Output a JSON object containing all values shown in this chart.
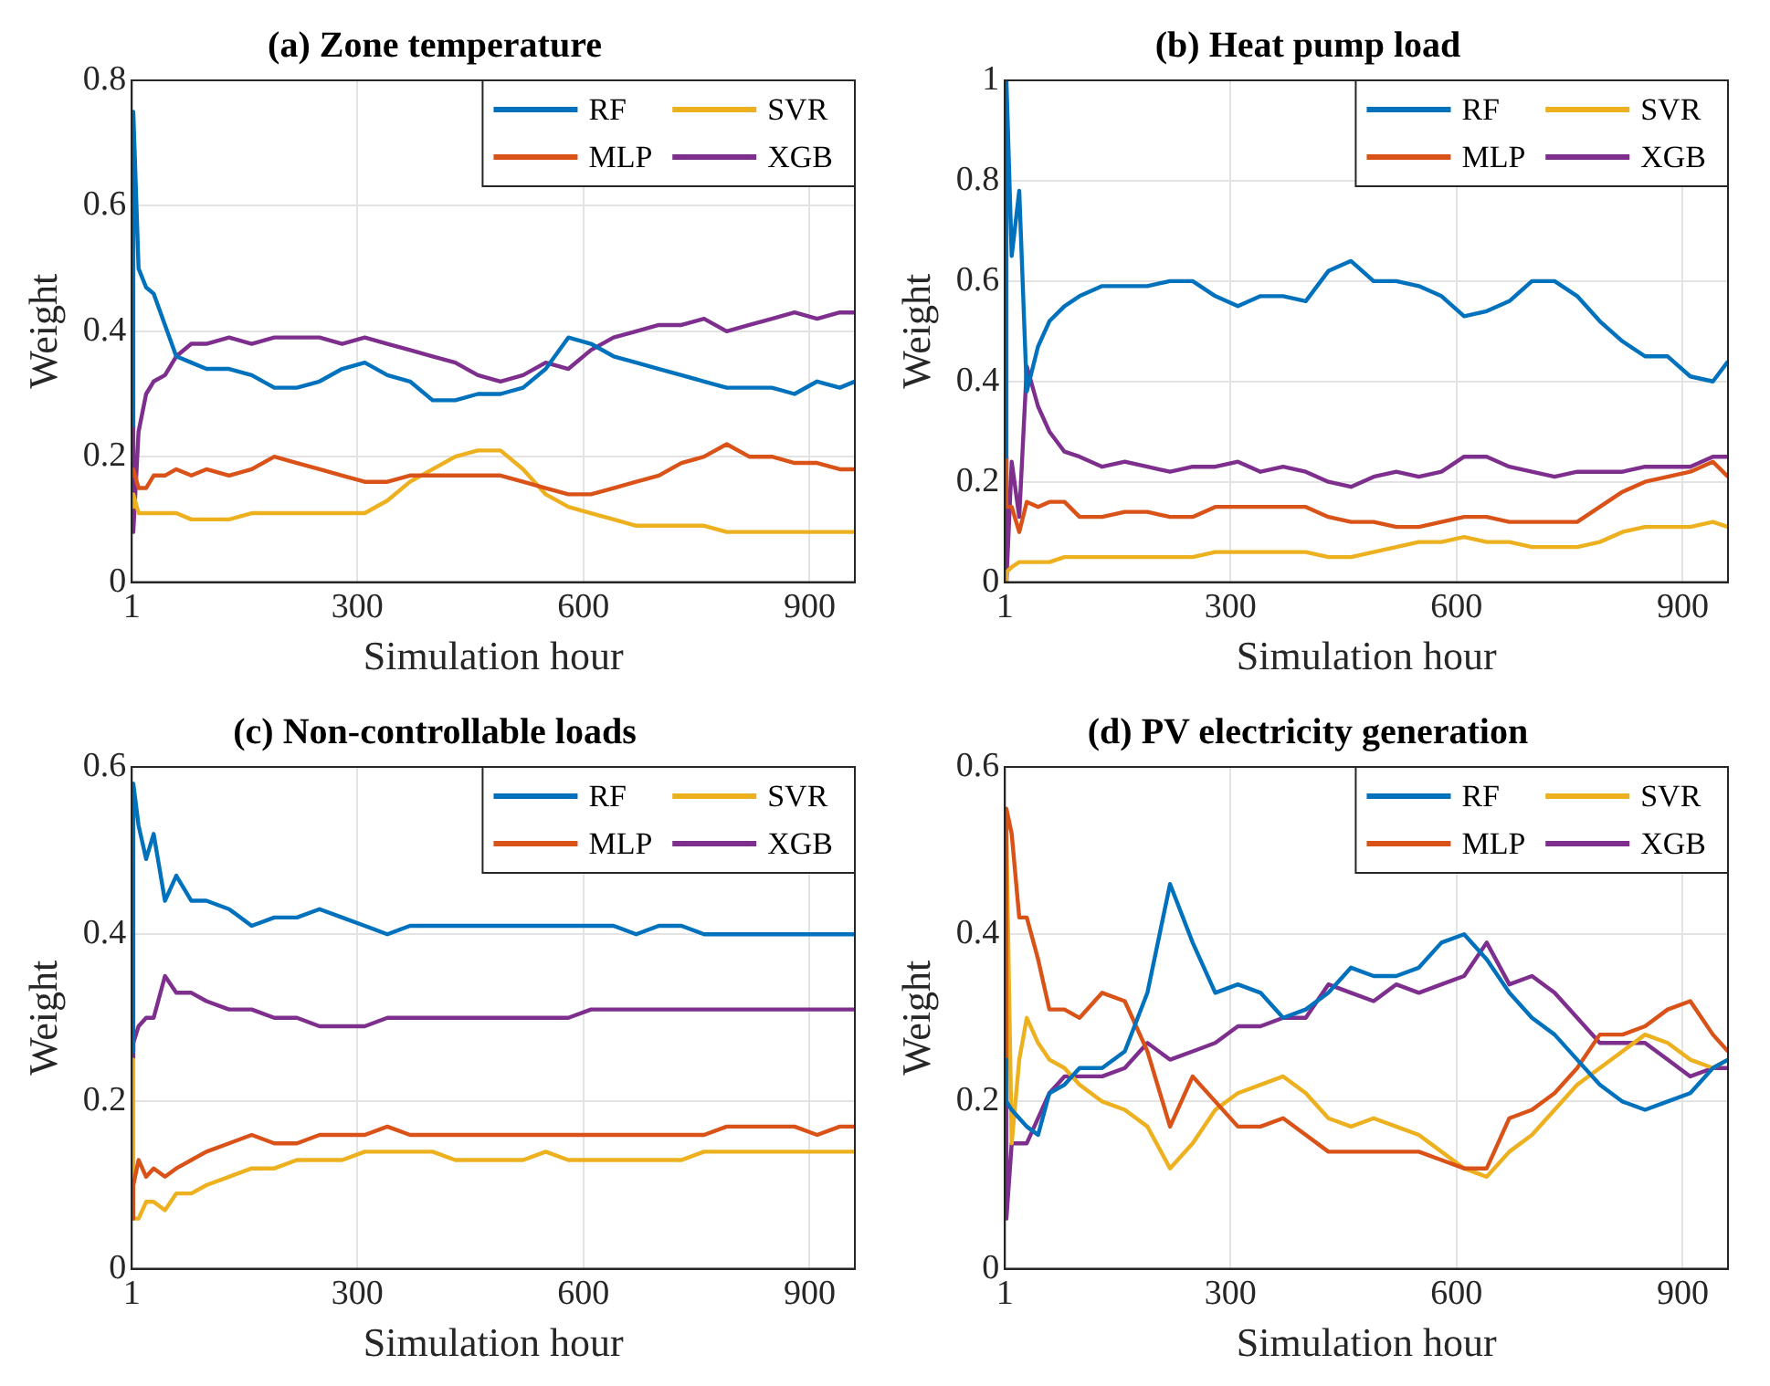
{
  "chart_data": [
    {
      "type": "line",
      "title": "(a) Zone temperature",
      "xlabel": "Simulation hour",
      "ylabel": "Weight",
      "xlim": [
        1,
        960
      ],
      "xticks": [
        1,
        300,
        600,
        900
      ],
      "ylim": [
        0,
        0.8
      ],
      "yticks": [
        0,
        0.2,
        0.4,
        0.6,
        0.8
      ],
      "grid": true,
      "legend": "top right",
      "line_style": "solid",
      "marker": "none",
      "x": [
        1,
        3,
        10,
        20,
        30,
        45,
        60,
        80,
        100,
        130,
        160,
        190,
        220,
        250,
        280,
        310,
        340,
        370,
        400,
        430,
        460,
        490,
        520,
        550,
        580,
        610,
        640,
        670,
        700,
        730,
        760,
        790,
        820,
        850,
        880,
        910,
        940,
        960
      ],
      "series": [
        {
          "name": "RF",
          "color": "#0072bd",
          "values": [
            0.25,
            0.75,
            0.5,
            0.47,
            0.46,
            0.41,
            0.36,
            0.35,
            0.34,
            0.34,
            0.33,
            0.31,
            0.31,
            0.32,
            0.34,
            0.35,
            0.33,
            0.32,
            0.29,
            0.29,
            0.3,
            0.3,
            0.31,
            0.34,
            0.39,
            0.38,
            0.36,
            0.35,
            0.34,
            0.33,
            0.32,
            0.31,
            0.31,
            0.31,
            0.3,
            0.32,
            0.31,
            0.32
          ]
        },
        {
          "name": "MLP",
          "color": "#d95319",
          "values": [
            0.17,
            0.18,
            0.15,
            0.15,
            0.17,
            0.17,
            0.18,
            0.17,
            0.18,
            0.17,
            0.18,
            0.2,
            0.19,
            0.18,
            0.17,
            0.16,
            0.16,
            0.17,
            0.17,
            0.17,
            0.17,
            0.17,
            0.16,
            0.15,
            0.14,
            0.14,
            0.15,
            0.16,
            0.17,
            0.19,
            0.2,
            0.22,
            0.2,
            0.2,
            0.19,
            0.19,
            0.18,
            0.18
          ]
        },
        {
          "name": "SVR",
          "color": "#edb120",
          "values": [
            0.12,
            0.14,
            0.11,
            0.11,
            0.11,
            0.11,
            0.11,
            0.1,
            0.1,
            0.1,
            0.11,
            0.11,
            0.11,
            0.11,
            0.11,
            0.11,
            0.13,
            0.16,
            0.18,
            0.2,
            0.21,
            0.21,
            0.18,
            0.14,
            0.12,
            0.11,
            0.1,
            0.09,
            0.09,
            0.09,
            0.09,
            0.08,
            0.08,
            0.08,
            0.08,
            0.08,
            0.08,
            0.08
          ]
        },
        {
          "name": "XGB",
          "color": "#7e2f8e",
          "values": [
            0.25,
            0.08,
            0.24,
            0.3,
            0.32,
            0.33,
            0.36,
            0.38,
            0.38,
            0.39,
            0.38,
            0.39,
            0.39,
            0.39,
            0.38,
            0.39,
            0.38,
            0.37,
            0.36,
            0.35,
            0.33,
            0.32,
            0.33,
            0.35,
            0.34,
            0.37,
            0.39,
            0.4,
            0.41,
            0.41,
            0.42,
            0.4,
            0.41,
            0.42,
            0.43,
            0.42,
            0.43,
            0.43
          ]
        }
      ]
    },
    {
      "type": "line",
      "title": "(b) Heat pump load",
      "xlabel": "Simulation hour",
      "ylabel": "Weight",
      "xlim": [
        1,
        960
      ],
      "xticks": [
        1,
        300,
        600,
        900
      ],
      "ylim": [
        0,
        1
      ],
      "yticks": [
        0,
        0.2,
        0.4,
        0.6,
        0.8,
        1
      ],
      "grid": true,
      "legend": "top right",
      "line_style": "solid",
      "marker": "none",
      "x": [
        1,
        3,
        10,
        20,
        30,
        45,
        60,
        80,
        100,
        130,
        160,
        190,
        220,
        250,
        280,
        310,
        340,
        370,
        400,
        430,
        460,
        490,
        520,
        550,
        580,
        610,
        640,
        670,
        700,
        730,
        760,
        790,
        820,
        850,
        880,
        910,
        940,
        960
      ],
      "series": [
        {
          "name": "RF",
          "color": "#0072bd",
          "values": [
            0.25,
            1,
            0.65,
            0.78,
            0.38,
            0.47,
            0.52,
            0.55,
            0.57,
            0.59,
            0.59,
            0.59,
            0.6,
            0.6,
            0.57,
            0.55,
            0.57,
            0.57,
            0.56,
            0.62,
            0.64,
            0.6,
            0.6,
            0.59,
            0.57,
            0.53,
            0.54,
            0.56,
            0.6,
            0.6,
            0.57,
            0.52,
            0.48,
            0.45,
            0.45,
            0.41,
            0.4,
            0.44
          ]
        },
        {
          "name": "MLP",
          "color": "#d95319",
          "values": [
            0.25,
            0.15,
            0.15,
            0.1,
            0.16,
            0.15,
            0.16,
            0.16,
            0.13,
            0.13,
            0.14,
            0.14,
            0.13,
            0.13,
            0.15,
            0.15,
            0.15,
            0.15,
            0.15,
            0.13,
            0.12,
            0.12,
            0.11,
            0.11,
            0.12,
            0.13,
            0.13,
            0.12,
            0.12,
            0.12,
            0.12,
            0.15,
            0.18,
            0.2,
            0.21,
            0.22,
            0.24,
            0.21
          ]
        },
        {
          "name": "SVR",
          "color": "#edb120",
          "values": [
            0,
            0.02,
            0.03,
            0.04,
            0.04,
            0.04,
            0.04,
            0.05,
            0.05,
            0.05,
            0.05,
            0.05,
            0.05,
            0.05,
            0.06,
            0.06,
            0.06,
            0.06,
            0.06,
            0.05,
            0.05,
            0.06,
            0.07,
            0.08,
            0.08,
            0.09,
            0.08,
            0.08,
            0.07,
            0.07,
            0.07,
            0.08,
            0.1,
            0.11,
            0.11,
            0.11,
            0.12,
            0.11
          ]
        },
        {
          "name": "XGB",
          "color": "#7e2f8e",
          "values": [
            0.25,
            0,
            0.24,
            0.13,
            0.43,
            0.35,
            0.3,
            0.26,
            0.25,
            0.23,
            0.24,
            0.23,
            0.22,
            0.23,
            0.23,
            0.24,
            0.22,
            0.23,
            0.22,
            0.2,
            0.19,
            0.21,
            0.22,
            0.21,
            0.22,
            0.25,
            0.25,
            0.23,
            0.22,
            0.21,
            0.22,
            0.22,
            0.22,
            0.23,
            0.23,
            0.23,
            0.25,
            0.25
          ]
        }
      ]
    },
    {
      "type": "line",
      "title": "(c) Non-controllable loads",
      "xlabel": "Simulation hour",
      "ylabel": "Weight",
      "xlim": [
        1,
        960
      ],
      "xticks": [
        1,
        300,
        600,
        900
      ],
      "ylim": [
        0,
        0.6
      ],
      "yticks": [
        0,
        0.2,
        0.4,
        0.6
      ],
      "grid": true,
      "legend": "top right",
      "line_style": "solid",
      "marker": "none",
      "x": [
        1,
        3,
        10,
        20,
        30,
        45,
        60,
        80,
        100,
        130,
        160,
        190,
        220,
        250,
        280,
        310,
        340,
        370,
        400,
        430,
        460,
        490,
        520,
        550,
        580,
        610,
        640,
        670,
        700,
        730,
        760,
        790,
        820,
        850,
        880,
        910,
        940,
        960
      ],
      "series": [
        {
          "name": "RF",
          "color": "#0072bd",
          "values": [
            0.26,
            0.58,
            0.53,
            0.49,
            0.52,
            0.44,
            0.47,
            0.44,
            0.44,
            0.43,
            0.41,
            0.42,
            0.42,
            0.43,
            0.42,
            0.41,
            0.4,
            0.41,
            0.41,
            0.41,
            0.41,
            0.41,
            0.41,
            0.41,
            0.41,
            0.41,
            0.41,
            0.4,
            0.41,
            0.41,
            0.4,
            0.4,
            0.4,
            0.4,
            0.4,
            0.4,
            0.4,
            0.4
          ]
        },
        {
          "name": "MLP",
          "color": "#d95319",
          "values": [
            0.06,
            0.1,
            0.13,
            0.11,
            0.12,
            0.11,
            0.12,
            0.13,
            0.14,
            0.15,
            0.16,
            0.15,
            0.15,
            0.16,
            0.16,
            0.16,
            0.17,
            0.16,
            0.16,
            0.16,
            0.16,
            0.16,
            0.16,
            0.16,
            0.16,
            0.16,
            0.16,
            0.16,
            0.16,
            0.16,
            0.16,
            0.17,
            0.17,
            0.17,
            0.17,
            0.16,
            0.17,
            0.17
          ]
        },
        {
          "name": "SVR",
          "color": "#edb120",
          "values": [
            0.25,
            0.06,
            0.06,
            0.08,
            0.08,
            0.07,
            0.09,
            0.09,
            0.1,
            0.11,
            0.12,
            0.12,
            0.13,
            0.13,
            0.13,
            0.14,
            0.14,
            0.14,
            0.14,
            0.13,
            0.13,
            0.13,
            0.13,
            0.14,
            0.13,
            0.13,
            0.13,
            0.13,
            0.13,
            0.13,
            0.14,
            0.14,
            0.14,
            0.14,
            0.14,
            0.14,
            0.14,
            0.14
          ]
        },
        {
          "name": "XGB",
          "color": "#7e2f8e",
          "values": [
            0.25,
            0.27,
            0.29,
            0.3,
            0.3,
            0.35,
            0.33,
            0.33,
            0.32,
            0.31,
            0.31,
            0.3,
            0.3,
            0.29,
            0.29,
            0.29,
            0.3,
            0.3,
            0.3,
            0.3,
            0.3,
            0.3,
            0.3,
            0.3,
            0.3,
            0.31,
            0.31,
            0.31,
            0.31,
            0.31,
            0.31,
            0.31,
            0.31,
            0.31,
            0.31,
            0.31,
            0.31,
            0.31
          ]
        }
      ]
    },
    {
      "type": "line",
      "title": "(d) PV electricity generation",
      "xlabel": "Simulation hour",
      "ylabel": "Weight",
      "xlim": [
        1,
        960
      ],
      "xticks": [
        1,
        300,
        600,
        900
      ],
      "ylim": [
        0,
        0.6
      ],
      "yticks": [
        0,
        0.2,
        0.4,
        0.6
      ],
      "grid": true,
      "legend": "top right",
      "line_style": "solid",
      "marker": "none",
      "x": [
        1,
        3,
        10,
        20,
        30,
        45,
        60,
        80,
        100,
        130,
        160,
        190,
        220,
        250,
        280,
        310,
        340,
        370,
        400,
        430,
        460,
        490,
        520,
        550,
        580,
        610,
        640,
        670,
        700,
        730,
        760,
        790,
        820,
        850,
        880,
        910,
        940,
        960
      ],
      "series": [
        {
          "name": "RF",
          "color": "#0072bd",
          "values": [
            0.25,
            0.2,
            0.19,
            0.18,
            0.17,
            0.16,
            0.21,
            0.22,
            0.24,
            0.24,
            0.26,
            0.33,
            0.46,
            0.39,
            0.33,
            0.34,
            0.33,
            0.3,
            0.31,
            0.33,
            0.36,
            0.35,
            0.35,
            0.36,
            0.39,
            0.4,
            0.37,
            0.33,
            0.3,
            0.28,
            0.25,
            0.22,
            0.2,
            0.19,
            0.2,
            0.21,
            0.24,
            0.25
          ]
        },
        {
          "name": "MLP",
          "color": "#d95319",
          "values": [
            0.25,
            0.55,
            0.52,
            0.42,
            0.42,
            0.37,
            0.31,
            0.31,
            0.3,
            0.33,
            0.32,
            0.26,
            0.17,
            0.23,
            0.2,
            0.17,
            0.17,
            0.18,
            0.16,
            0.14,
            0.14,
            0.14,
            0.14,
            0.14,
            0.13,
            0.12,
            0.12,
            0.18,
            0.19,
            0.21,
            0.24,
            0.28,
            0.28,
            0.29,
            0.31,
            0.32,
            0.28,
            0.26
          ]
        },
        {
          "name": "SVR",
          "color": "#edb120",
          "values": [
            0.25,
            0.52,
            0.15,
            0.25,
            0.3,
            0.27,
            0.25,
            0.24,
            0.22,
            0.2,
            0.19,
            0.17,
            0.12,
            0.15,
            0.19,
            0.21,
            0.22,
            0.23,
            0.21,
            0.18,
            0.17,
            0.18,
            0.17,
            0.16,
            0.14,
            0.12,
            0.11,
            0.14,
            0.16,
            0.19,
            0.22,
            0.24,
            0.26,
            0.28,
            0.27,
            0.25,
            0.24,
            0.25
          ]
        },
        {
          "name": "XGB",
          "color": "#7e2f8e",
          "values": [
            0.25,
            0.06,
            0.15,
            0.15,
            0.15,
            0.18,
            0.21,
            0.23,
            0.23,
            0.23,
            0.24,
            0.27,
            0.25,
            0.26,
            0.27,
            0.29,
            0.29,
            0.3,
            0.3,
            0.34,
            0.33,
            0.32,
            0.34,
            0.33,
            0.34,
            0.35,
            0.39,
            0.34,
            0.35,
            0.33,
            0.3,
            0.27,
            0.27,
            0.27,
            0.25,
            0.23,
            0.24,
            0.24
          ]
        }
      ]
    }
  ]
}
